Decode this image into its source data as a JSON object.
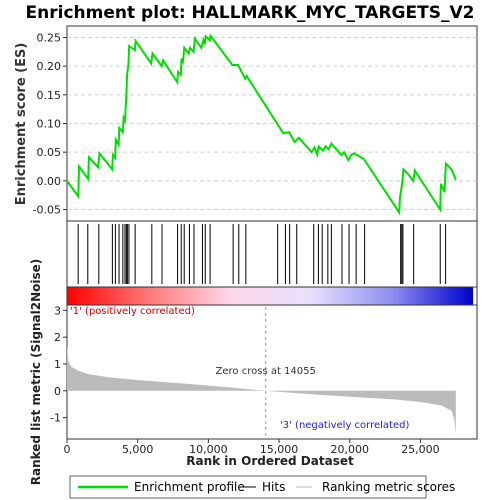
{
  "chart_data": {
    "type": "line",
    "title": "Enrichment plot: HALLMARK_MYC_TARGETS_V2",
    "es_panel": {
      "ylabel": "Enrichment score (ES)",
      "ylim": [
        -0.07,
        0.27
      ],
      "yticks": [
        -0.05,
        0.0,
        0.05,
        0.1,
        0.15,
        0.2,
        0.25
      ],
      "ytick_labels": [
        "-0.05",
        "0.00",
        "0.05",
        "0.10",
        "0.15",
        "0.20",
        "0.25"
      ],
      "xlim": [
        0,
        29000
      ],
      "color": "#00dd00",
      "points": [
        [
          0,
          0.0
        ],
        [
          800,
          -0.027
        ],
        [
          850,
          0.025
        ],
        [
          1500,
          0.003
        ],
        [
          1550,
          0.041
        ],
        [
          2200,
          0.024
        ],
        [
          2300,
          0.048
        ],
        [
          3200,
          0.02
        ],
        [
          3250,
          0.045
        ],
        [
          3400,
          0.04
        ],
        [
          3450,
          0.072
        ],
        [
          3650,
          0.063
        ],
        [
          3700,
          0.092
        ],
        [
          3950,
          0.085
        ],
        [
          4000,
          0.11
        ],
        [
          4100,
          0.105
        ],
        [
          4150,
          0.13
        ],
        [
          4200,
          0.15
        ],
        [
          4250,
          0.185
        ],
        [
          4350,
          0.205
        ],
        [
          4400,
          0.235
        ],
        [
          4800,
          0.228
        ],
        [
          4850,
          0.244
        ],
        [
          5950,
          0.205
        ],
        [
          6050,
          0.222
        ],
        [
          6700,
          0.2
        ],
        [
          6800,
          0.21
        ],
        [
          7800,
          0.172
        ],
        [
          7850,
          0.19
        ],
        [
          8050,
          0.185
        ],
        [
          8100,
          0.213
        ],
        [
          8200,
          0.208
        ],
        [
          8300,
          0.232
        ],
        [
          8600,
          0.222
        ],
        [
          8700,
          0.232
        ],
        [
          8950,
          0.225
        ],
        [
          9050,
          0.248
        ],
        [
          9500,
          0.232
        ],
        [
          9650,
          0.245
        ],
        [
          9750,
          0.238
        ],
        [
          9800,
          0.252
        ],
        [
          10100,
          0.245
        ],
        [
          10150,
          0.253
        ],
        [
          10300,
          0.248
        ],
        [
          11700,
          0.202
        ],
        [
          12100,
          0.202
        ],
        [
          12600,
          0.178
        ],
        [
          12700,
          0.183
        ],
        [
          15300,
          0.083
        ],
        [
          15700,
          0.085
        ],
        [
          16100,
          0.068
        ],
        [
          16400,
          0.075
        ],
        [
          17300,
          0.05
        ],
        [
          17500,
          0.058
        ],
        [
          17700,
          0.046
        ],
        [
          17800,
          0.06
        ],
        [
          18100,
          0.053
        ],
        [
          18300,
          0.06
        ],
        [
          18500,
          0.055
        ],
        [
          18700,
          0.065
        ],
        [
          19400,
          0.045
        ],
        [
          19600,
          0.05
        ],
        [
          19900,
          0.036
        ],
        [
          20100,
          0.045
        ],
        [
          20300,
          0.048
        ],
        [
          21000,
          0.038
        ],
        [
          23500,
          -0.055
        ],
        [
          23550,
          -0.03
        ],
        [
          23700,
          -0.005
        ],
        [
          23800,
          0.02
        ],
        [
          24200,
          0.01
        ],
        [
          24500,
          0.0
        ],
        [
          24600,
          0.018
        ],
        [
          26400,
          -0.05
        ],
        [
          26450,
          -0.005
        ],
        [
          26700,
          -0.02
        ],
        [
          26800,
          0.03
        ],
        [
          27200,
          0.02
        ],
        [
          27500,
          0.002
        ]
      ]
    },
    "hits_panel": {
      "hit_ranks": [
        790,
        1470,
        2250,
        3210,
        3420,
        3680,
        3950,
        4100,
        4200,
        4270,
        4380,
        4820,
        6000,
        6720,
        7820,
        8080,
        8290,
        8660,
        8980,
        9580,
        9780,
        10120,
        11750,
        12150,
        12650,
        14900,
        15450,
        15750,
        16250,
        17450,
        17780,
        18050,
        18450,
        18700,
        19450,
        19950,
        20450,
        21050,
        23600,
        23680,
        23760,
        24520,
        26400,
        26780
      ]
    },
    "gradient_bar": {
      "stops": [
        "#ff0000",
        "#ff7777",
        "#ffd6e6",
        "#e8e0ff",
        "#8e8ef0",
        "#0000cc"
      ]
    },
    "metric_panel": {
      "ylabel": "Ranked list metric (Signal2Noise)",
      "xlabel": "Rank in Ordered Dataset",
      "ylim": [
        -1.8,
        3.2
      ],
      "yticks": [
        -1,
        0,
        1,
        2,
        3
      ],
      "ytick_labels": [
        "-1",
        "0",
        "1",
        "2",
        "3"
      ],
      "xlim": [
        0,
        29000
      ],
      "xticks": [
        0,
        5000,
        10000,
        15000,
        20000,
        25000
      ],
      "xtick_labels": [
        "0",
        "5,000",
        "10,000",
        "15,000",
        "20,000",
        "25,000"
      ],
      "fill_color": "#bbbbbb",
      "metric_curve": [
        [
          0,
          1.7
        ],
        [
          100,
          1.1
        ],
        [
          300,
          0.9
        ],
        [
          800,
          0.75
        ],
        [
          1500,
          0.62
        ],
        [
          3000,
          0.5
        ],
        [
          5000,
          0.4
        ],
        [
          8000,
          0.28
        ],
        [
          11000,
          0.15
        ],
        [
          14055,
          0.0
        ],
        [
          17000,
          -0.12
        ],
        [
          20000,
          -0.22
        ],
        [
          23000,
          -0.32
        ],
        [
          25000,
          -0.42
        ],
        [
          26500,
          -0.55
        ],
        [
          27200,
          -0.75
        ],
        [
          27400,
          -1.1
        ],
        [
          27500,
          -1.65
        ]
      ],
      "zero_cross_rank": 14055,
      "zero_cross_label": "Zero cross at 14055",
      "pos_label": "'1' (positively correlated)",
      "neg_label": "'3' (negatively correlated)"
    },
    "legend": {
      "placement": "bottom",
      "entries": [
        {
          "label": "Enrichment profile",
          "color": "#00dd00"
        },
        {
          "label": "Hits",
          "color": "#000000"
        },
        {
          "label": "Ranking metric scores",
          "color": "#bbbbbb"
        }
      ]
    }
  }
}
